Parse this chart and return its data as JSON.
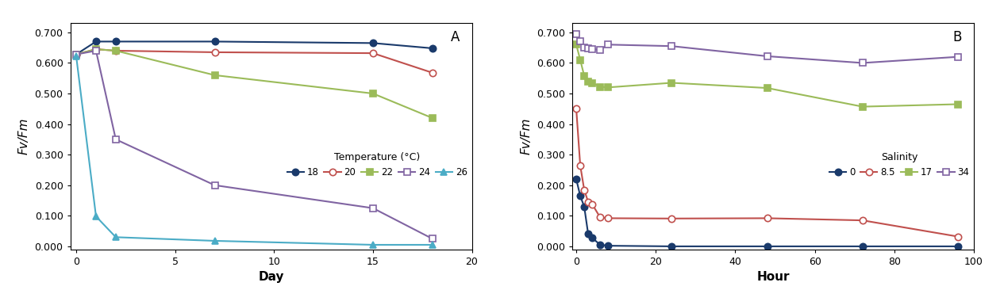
{
  "panel_A": {
    "title": "A",
    "xlabel": "Day",
    "ylabel": "Fv/Fm",
    "xlim": [
      -0.3,
      20
    ],
    "ylim": [
      -0.01,
      0.73
    ],
    "yticks": [
      0.0,
      0.1,
      0.2,
      0.3,
      0.4,
      0.5,
      0.6,
      0.7
    ],
    "yticklabels": [
      "0.000",
      "0.100",
      "0.200",
      "0.300",
      "0.400",
      "0.500",
      "0.600",
      "0.700"
    ],
    "xticks": [
      0,
      5,
      10,
      15,
      20
    ],
    "legend_title": "Temperature (°C)",
    "legend_labels": [
      "18",
      "20",
      "22",
      "24",
      "26"
    ],
    "series": [
      {
        "label": "18",
        "color": "#1a3a6b",
        "marker": "o",
        "fillstyle": "full",
        "x": [
          0,
          1,
          2,
          7,
          15,
          18
        ],
        "y": [
          0.628,
          0.67,
          0.67,
          0.67,
          0.665,
          0.648
        ]
      },
      {
        "label": "20",
        "color": "#c0504d",
        "marker": "o",
        "fillstyle": "none",
        "x": [
          0,
          1,
          2,
          7,
          15,
          18
        ],
        "y": [
          0.628,
          0.645,
          0.64,
          0.635,
          0.632,
          0.568
        ]
      },
      {
        "label": "22",
        "color": "#9bbb59",
        "marker": "s",
        "fillstyle": "full",
        "x": [
          0,
          1,
          2,
          7,
          15,
          18
        ],
        "y": [
          0.628,
          0.645,
          0.64,
          0.56,
          0.5,
          0.42
        ]
      },
      {
        "label": "24",
        "color": "#8064a2",
        "marker": "s",
        "fillstyle": "none",
        "x": [
          0,
          1,
          2,
          7,
          15,
          18
        ],
        "y": [
          0.628,
          0.64,
          0.35,
          0.2,
          0.125,
          0.025
        ]
      },
      {
        "label": "26",
        "color": "#4bacc6",
        "marker": "^",
        "fillstyle": "full",
        "x": [
          0,
          1,
          2,
          7,
          15,
          18
        ],
        "y": [
          0.622,
          0.098,
          0.03,
          0.018,
          0.005,
          0.005
        ]
      }
    ]
  },
  "panel_B": {
    "title": "B",
    "xlabel": "Hour",
    "ylabel": "Fv/Fm",
    "xlim": [
      -1,
      100
    ],
    "ylim": [
      -0.01,
      0.73
    ],
    "yticks": [
      0.0,
      0.1,
      0.2,
      0.3,
      0.4,
      0.5,
      0.6,
      0.7
    ],
    "yticklabels": [
      "0.000",
      "0.100",
      "0.200",
      "0.300",
      "0.400",
      "0.500",
      "0.600",
      "0.700"
    ],
    "xticks": [
      0,
      20,
      40,
      60,
      80,
      100
    ],
    "legend_title": "Salinity",
    "legend_labels": [
      "0",
      "8.5",
      "17",
      "34"
    ],
    "series": [
      {
        "label": "0",
        "color": "#1a3a6b",
        "marker": "o",
        "fillstyle": "full",
        "x": [
          0,
          1,
          2,
          3,
          4,
          6,
          8,
          24,
          48,
          72,
          96
        ],
        "y": [
          0.22,
          0.165,
          0.13,
          0.04,
          0.028,
          0.005,
          0.002,
          0.0,
          0.0,
          0.0,
          0.0
        ]
      },
      {
        "label": "8.5",
        "color": "#c0504d",
        "marker": "o",
        "fillstyle": "none",
        "x": [
          0,
          1,
          2,
          3,
          4,
          6,
          8,
          24,
          48,
          72,
          96
        ],
        "y": [
          0.45,
          0.265,
          0.185,
          0.145,
          0.138,
          0.095,
          0.092,
          0.091,
          0.092,
          0.085,
          0.032
        ]
      },
      {
        "label": "17",
        "color": "#9bbb59",
        "marker": "s",
        "fillstyle": "full",
        "x": [
          0,
          1,
          2,
          3,
          4,
          6,
          8,
          24,
          48,
          72,
          96
        ],
        "y": [
          0.66,
          0.61,
          0.558,
          0.54,
          0.535,
          0.522,
          0.52,
          0.535,
          0.518,
          0.457,
          0.465
        ]
      },
      {
        "label": "34",
        "color": "#8064a2",
        "marker": "s",
        "fillstyle": "none",
        "x": [
          0,
          1,
          2,
          3,
          4,
          6,
          8,
          24,
          48,
          72,
          96
        ],
        "y": [
          0.695,
          0.67,
          0.65,
          0.648,
          0.645,
          0.643,
          0.66,
          0.655,
          0.622,
          0.6,
          0.62
        ]
      }
    ]
  }
}
